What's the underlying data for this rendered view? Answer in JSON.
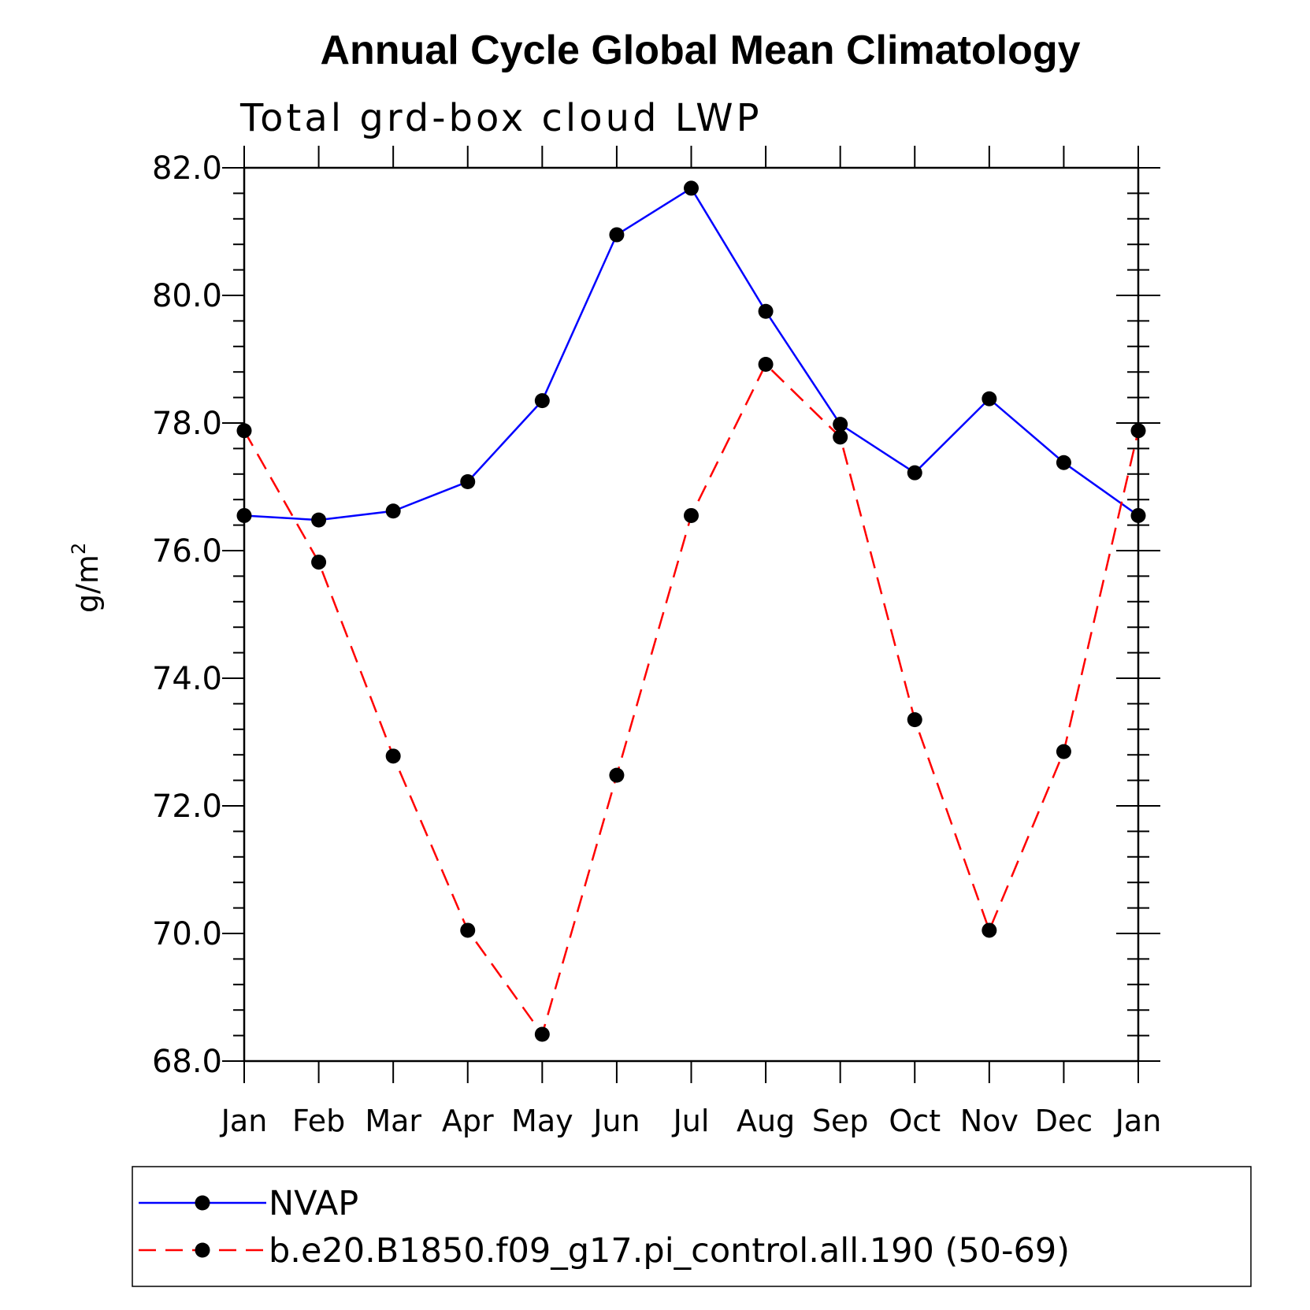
{
  "chart_data": {
    "type": "line",
    "title": "Annual Cycle Global Mean Climatology",
    "subtitle": "Total grd-box cloud LWP",
    "ylabel": "g/m",
    "ylabel_sup": "2",
    "ylim": [
      68,
      82
    ],
    "yticks": [
      "68.0",
      "70.0",
      "72.0",
      "74.0",
      "76.0",
      "78.0",
      "80.0",
      "82.0"
    ],
    "categories": [
      "Jan",
      "Feb",
      "Mar",
      "Apr",
      "May",
      "Jun",
      "Jul",
      "Aug",
      "Sep",
      "Oct",
      "Nov",
      "Dec",
      "Jan"
    ],
    "series": [
      {
        "name": "NVAP",
        "color": "#0000ff",
        "dash": "solid",
        "marker": "filled-circle",
        "values": [
          76.55,
          76.48,
          76.62,
          77.08,
          78.35,
          80.95,
          81.68,
          79.75,
          77.98,
          77.22,
          78.38,
          77.38,
          76.55
        ]
      },
      {
        "name": "b.e20.B1850.f09_g17.pi_control.all.190 (50-69)",
        "color": "#ff0000",
        "dash": "dashed",
        "marker": "filled-circle",
        "values": [
          77.88,
          75.82,
          72.78,
          70.05,
          68.42,
          72.48,
          76.55,
          78.92,
          77.78,
          73.35,
          70.05,
          72.85,
          77.88
        ]
      }
    ],
    "legend_position": "bottom"
  }
}
